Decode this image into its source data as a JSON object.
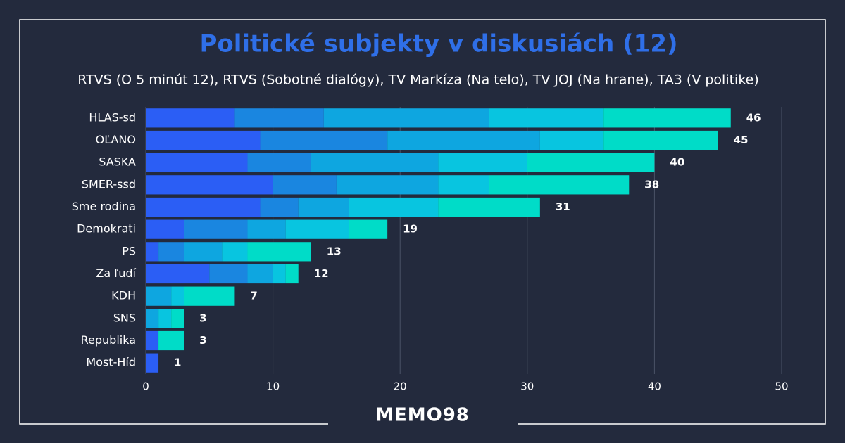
{
  "chart_data": {
    "type": "stacked-bar-horizontal",
    "title": "Politické subjekty v diskusiách (12)",
    "subtitle": "RTVS (O 5 minút 12), RTVS (Sobotné dialógy), TV Markíza (Na telo), TV JOJ (Na hrane), TA3 (V politike)",
    "categories": [
      "HLAS-sd",
      "OĽANO",
      "SASKA",
      "SMER-ssd",
      "Sme rodina",
      "Demokrati",
      "PS",
      "Za ľudí",
      "KDH",
      "SNS",
      "Republika",
      "Most-Híd"
    ],
    "series": [
      {
        "color": "#2b5ef5",
        "values": [
          7,
          9,
          8,
          10,
          9,
          3,
          1,
          5,
          0,
          0,
          1,
          1
        ]
      },
      {
        "color": "#1a86e0",
        "values": [
          7,
          10,
          5,
          5,
          3,
          5,
          2,
          3,
          0,
          0,
          0,
          0
        ]
      },
      {
        "color": "#0ea6e0",
        "values": [
          13,
          12,
          10,
          8,
          4,
          3,
          3,
          2,
          2,
          1,
          0,
          0
        ]
      },
      {
        "color": "#08c5e0",
        "values": [
          9,
          5,
          7,
          4,
          7,
          5,
          2,
          1,
          1,
          1,
          0,
          0
        ]
      },
      {
        "color": "#00dcc8",
        "values": [
          10,
          9,
          10,
          11,
          8,
          3,
          5,
          1,
          4,
          1,
          2,
          0
        ]
      }
    ],
    "totals": [
      46,
      45,
      40,
      38,
      31,
      19,
      13,
      12,
      7,
      3,
      3,
      1
    ],
    "xlim": [
      0,
      50
    ],
    "xticks": [
      0,
      10,
      20,
      30,
      40,
      50
    ],
    "grid": true,
    "logo": "MEMO98"
  }
}
